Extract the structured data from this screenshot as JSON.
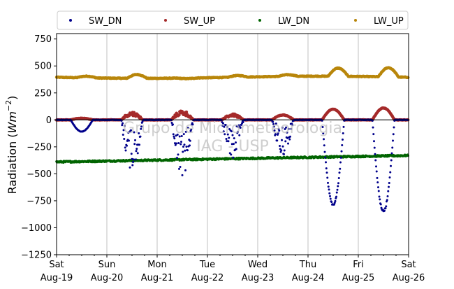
{
  "chart_data": {
    "type": "scatter",
    "watermark": [
      "Grupo de Micrometeorologia",
      "IAG - USP"
    ],
    "ylabel_prefix": "Radiation (",
    "ylabel_unit": "Wm",
    "ylabel_exp": "−2",
    "ylabel_suffix": ")",
    "ylim": [
      -1250,
      800
    ],
    "yticks": [
      {
        "value": 750,
        "label": "750"
      },
      {
        "value": 500,
        "label": "500"
      },
      {
        "value": 250,
        "label": "250"
      },
      {
        "value": 0,
        "label": "0"
      },
      {
        "value": -250,
        "label": "−250"
      },
      {
        "value": -500,
        "label": "−500"
      },
      {
        "value": -750,
        "label": "−750"
      },
      {
        "value": -1000,
        "label": "−1000"
      },
      {
        "value": -1250,
        "label": "−1250"
      }
    ],
    "xlim_days": [
      19,
      26
    ],
    "xticks": [
      {
        "day": 19,
        "weekday": "Sat",
        "date": "Aug-19"
      },
      {
        "day": 20,
        "weekday": "Sun",
        "date": "Aug-20"
      },
      {
        "day": 21,
        "weekday": "Mon",
        "date": "Aug-21"
      },
      {
        "day": 22,
        "weekday": "Tue",
        "date": "Aug-22"
      },
      {
        "day": 23,
        "weekday": "Wed",
        "date": "Aug-23"
      },
      {
        "day": 24,
        "weekday": "Thu",
        "date": "Aug-24"
      },
      {
        "day": 25,
        "weekday": "Fri",
        "date": "Aug-25"
      },
      {
        "day": 26,
        "weekday": "Sat",
        "date": "Aug-26"
      }
    ],
    "grid": "vertical",
    "zero_line": true,
    "legend": "top",
    "series": [
      {
        "name": "SW_DN",
        "color": "#00008b",
        "daily_min": [
          -110,
          -470,
          -520,
          -360,
          -330,
          -800,
          -860,
          -840
        ]
      },
      {
        "name": "SW_UP",
        "color": "#a52a2a",
        "daily_peak": [
          15,
          60,
          70,
          45,
          45,
          100,
          110,
          105
        ]
      },
      {
        "name": "LW_DN",
        "color": "#006400",
        "base": -390,
        "end": -330
      },
      {
        "name": "LW_UP",
        "color": "#b8860b",
        "base": 395,
        "daily_peak": [
          410,
          430,
          390,
          410,
          410,
          470,
          480,
          500
        ]
      }
    ]
  }
}
